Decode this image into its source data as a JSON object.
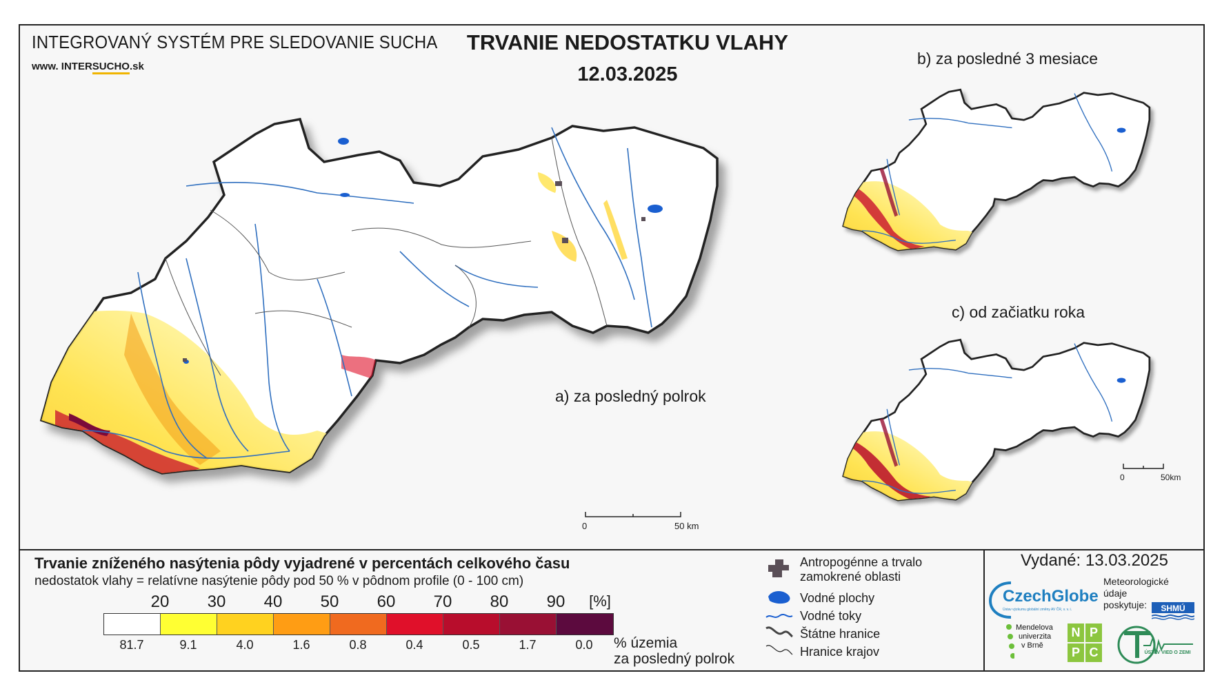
{
  "header": {
    "system_title": "INTEGROVANÝ SYSTÉM PRE SLEDOVANIE SUCHA",
    "www_prefix": "www. INTER",
    "www_accent": "SUCHO",
    "www_suffix": ".sk",
    "main_title": "TRVANIE NEDOSTATKU VLAHY",
    "date": "12.03.2025"
  },
  "maps": {
    "a_label": "a) za posledný polrok",
    "b_label": "b) za posledné 3 mesiace",
    "c_label": "c) od začiatku roka",
    "scale_a": {
      "zero": "0",
      "end": "50 km"
    },
    "scale_c": {
      "zero": "0",
      "end": "50km"
    }
  },
  "legend": {
    "title": "Trvanie zníženého nasýtenia pôdy vyjadrené v percentách celkového času",
    "subtitle": "nedostatok vlahy = relatívne nasýtenie pôdy pod 50 % v pôdnom profile (0 - 100 cm)",
    "thresholds": [
      "20",
      "30",
      "40",
      "50",
      "60",
      "70",
      "80",
      "90",
      "[%]"
    ],
    "colors": [
      "#ffffff",
      "#ffff33",
      "#ffd21f",
      "#ff9d14",
      "#f06a1f",
      "#e0102a",
      "#b80d2c",
      "#991034",
      "#5c0a3e"
    ],
    "percent_territory": [
      "81.7",
      "9.1",
      "4.0",
      "1.6",
      "0.8",
      "0.4",
      "0.5",
      "1.7",
      "0.0"
    ],
    "percent_label_1": "% územia",
    "percent_label_2": "za posledný polrok",
    "items": [
      {
        "icon": "anthropogenic-area-icon",
        "label_1": "Antropogénne a trvalo",
        "label_2": "zamokrené oblasti"
      },
      {
        "icon": "water-body-icon",
        "label_1": "Vodné plochy"
      },
      {
        "icon": "river-icon",
        "label_1": "Vodné toky"
      },
      {
        "icon": "state-border-icon",
        "label_1": "Štátne hranice"
      },
      {
        "icon": "region-border-icon",
        "label_1": "Hranice krajov"
      }
    ]
  },
  "credits": {
    "issued": "Vydané: 13.03.2025",
    "czechglobe": "CzechGlobe",
    "czechglobe_sub": "Ústav výzkumu globální změny AV ČR, v. v. i.",
    "meteo_1": "Meteorologické",
    "meteo_2": "údaje",
    "meteo_3": "poskytuje:",
    "shmu": "SHMÚ",
    "mendel_1": "Mendelova",
    "mendel_2": "univerzita",
    "mendel_3": "v Brně",
    "nppc": [
      "N",
      "P",
      "P",
      "C"
    ],
    "uvz": "ÚSTAV VIED O ZEMI"
  },
  "colors": {
    "river": "#2f6fbf",
    "water": "#1a5fd0",
    "border": "#222222"
  }
}
